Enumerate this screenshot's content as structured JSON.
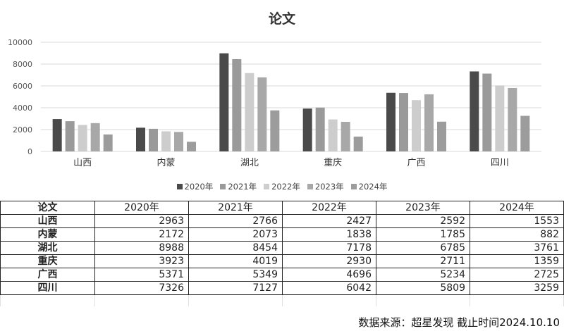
{
  "chart_data": {
    "type": "bar",
    "title": "论文",
    "categories": [
      "山西",
      "内蒙",
      "湖北",
      "重庆",
      "广西",
      "四川"
    ],
    "series": [
      {
        "name": "2020年",
        "color": "#4a4a4a",
        "values": [
          2963,
          2172,
          8988,
          3923,
          5371,
          7326
        ]
      },
      {
        "name": "2021年",
        "color": "#9a9a9a",
        "values": [
          2766,
          2073,
          8454,
          4019,
          5349,
          7127
        ]
      },
      {
        "name": "2022年",
        "color": "#cdcdcd",
        "values": [
          2427,
          1838,
          7178,
          2930,
          4696,
          6042
        ]
      },
      {
        "name": "2023年",
        "color": "#a8a8a8",
        "values": [
          2592,
          1785,
          6785,
          2711,
          5234,
          5809
        ]
      },
      {
        "name": "2024年",
        "color": "#9c9c9c",
        "values": [
          1553,
          882,
          3761,
          1359,
          2725,
          3259
        ]
      }
    ],
    "ylim": [
      0,
      10000
    ],
    "yticks": [
      "0",
      "2000",
      "4000",
      "6000",
      "8000",
      "10000"
    ],
    "grid": true,
    "legend": "bottom"
  },
  "table": {
    "corner": "论文",
    "headers": [
      "2020年",
      "2021年",
      "2022年",
      "2023年",
      "2024年"
    ],
    "rows": [
      {
        "label": "山西",
        "values": [
          "2963",
          "2766",
          "2427",
          "2592",
          "1553"
        ]
      },
      {
        "label": "内蒙",
        "values": [
          "2172",
          "2073",
          "1838",
          "1785",
          "882"
        ]
      },
      {
        "label": "湖北",
        "values": [
          "8988",
          "8454",
          "7178",
          "6785",
          "3761"
        ]
      },
      {
        "label": "重庆",
        "values": [
          "3923",
          "4019",
          "2930",
          "2711",
          "1359"
        ]
      },
      {
        "label": "广西",
        "values": [
          "5371",
          "5349",
          "4696",
          "5234",
          "2725"
        ]
      },
      {
        "label": "四川",
        "values": [
          "7326",
          "7127",
          "6042",
          "5809",
          "3259"
        ]
      }
    ]
  },
  "footer": "数据来源：超星发现 截止时间2024.10.10"
}
